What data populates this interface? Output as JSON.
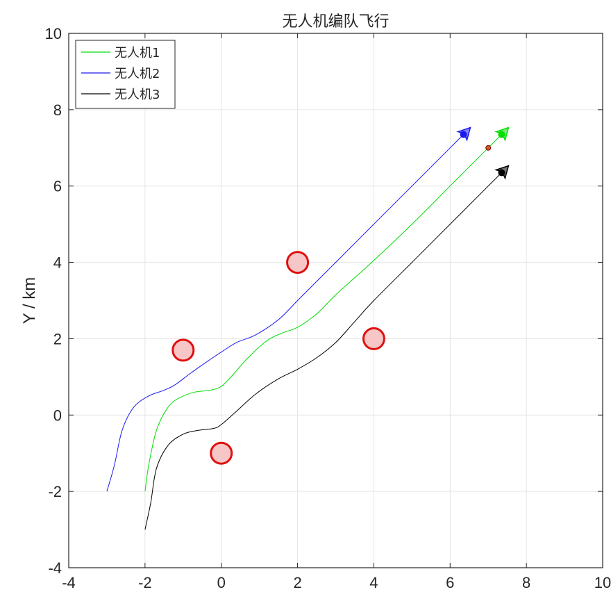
{
  "chart_data": {
    "type": "line",
    "title": "无人机编队飞行",
    "xlabel": "",
    "ylabel": "Y / km",
    "xlim": [
      -4,
      10
    ],
    "ylim": [
      -4,
      10
    ],
    "x_ticks": [
      "-4",
      "-2",
      "0",
      "2",
      "4",
      "6",
      "8",
      "10"
    ],
    "y_ticks": [
      "-4",
      "-2",
      "0",
      "2",
      "4",
      "6",
      "8",
      "10"
    ],
    "grid": true,
    "legend_position": "top-left",
    "series": [
      {
        "name": "无人机1",
        "color": "#00dd00",
        "points": [
          [
            -2.0,
            -2.0
          ],
          [
            -1.9,
            -1.3
          ],
          [
            -1.7,
            -0.4
          ],
          [
            -1.4,
            0.2
          ],
          [
            -1.1,
            0.45
          ],
          [
            -0.7,
            0.6
          ],
          [
            -0.3,
            0.65
          ],
          [
            0.0,
            0.75
          ],
          [
            0.3,
            1.05
          ],
          [
            0.7,
            1.5
          ],
          [
            1.2,
            1.95
          ],
          [
            1.6,
            2.15
          ],
          [
            2.0,
            2.3
          ],
          [
            2.5,
            2.65
          ],
          [
            3.0,
            3.15
          ],
          [
            3.5,
            3.6
          ],
          [
            4.0,
            4.05
          ],
          [
            5.0,
            5.0
          ],
          [
            6.0,
            6.0
          ],
          [
            7.0,
            7.0
          ],
          [
            7.35,
            7.35
          ]
        ],
        "end_marker": [
          7.35,
          7.35
        ]
      },
      {
        "name": "无人机2",
        "color": "#1a1aee",
        "points": [
          [
            -3.0,
            -2.0
          ],
          [
            -2.8,
            -1.3
          ],
          [
            -2.6,
            -0.4
          ],
          [
            -2.3,
            0.2
          ],
          [
            -1.9,
            0.5
          ],
          [
            -1.5,
            0.65
          ],
          [
            -1.2,
            0.8
          ],
          [
            -0.8,
            1.1
          ],
          [
            -0.3,
            1.45
          ],
          [
            0.0,
            1.65
          ],
          [
            0.4,
            1.9
          ],
          [
            0.9,
            2.1
          ],
          [
            1.5,
            2.5
          ],
          [
            2.0,
            3.0
          ],
          [
            2.5,
            3.5
          ],
          [
            3.0,
            4.0
          ],
          [
            4.0,
            5.0
          ],
          [
            5.0,
            6.0
          ],
          [
            6.0,
            7.0
          ],
          [
            6.35,
            7.35
          ]
        ],
        "end_marker": [
          6.35,
          7.35
        ]
      },
      {
        "name": "无人机3",
        "color": "#000000",
        "points": [
          [
            -2.0,
            -3.0
          ],
          [
            -1.85,
            -2.3
          ],
          [
            -1.7,
            -1.4
          ],
          [
            -1.4,
            -0.8
          ],
          [
            -1.0,
            -0.5
          ],
          [
            -0.6,
            -0.4
          ],
          [
            -0.2,
            -0.35
          ],
          [
            0.0,
            -0.25
          ],
          [
            0.4,
            0.1
          ],
          [
            0.9,
            0.55
          ],
          [
            1.5,
            0.95
          ],
          [
            2.0,
            1.2
          ],
          [
            2.5,
            1.5
          ],
          [
            3.0,
            1.9
          ],
          [
            3.5,
            2.45
          ],
          [
            4.0,
            3.0
          ],
          [
            5.0,
            4.0
          ],
          [
            6.0,
            5.0
          ],
          [
            7.0,
            6.0
          ],
          [
            7.35,
            6.35
          ]
        ],
        "end_marker": [
          7.35,
          6.35
        ]
      }
    ],
    "obstacles": [
      {
        "x": -1,
        "y": 1.7
      },
      {
        "x": 0,
        "y": -1
      },
      {
        "x": 2,
        "y": 4
      },
      {
        "x": 4,
        "y": 2
      }
    ],
    "target_point": {
      "x": 7,
      "y": 7
    },
    "colors": {
      "obstacle_fill": "#f7c6c6",
      "obstacle_stroke": "#e01010",
      "target_fill": "#c85a2a",
      "target_stroke": "#8b0000",
      "grid": "#e5e5e5",
      "axis": "#262626"
    }
  }
}
